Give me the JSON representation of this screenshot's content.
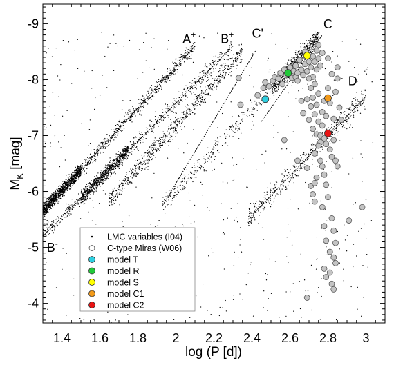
{
  "chart_data": {
    "type": "scatter",
    "xlabel": "log  (P [d])",
    "ylabel_main": "M",
    "ylabel_sub": "K",
    "ylabel_unit": "  [mag]",
    "xlim": [
      1.3,
      3.1
    ],
    "ylim": [
      -3.65,
      -9.35
    ],
    "y_inverted": true,
    "x_ticks": [
      1.4,
      1.6,
      1.8,
      2.0,
      2.2,
      2.4,
      2.6,
      2.8,
      3.0
    ],
    "x_tick_labels": [
      "1.4",
      "1.6",
      "1.8",
      "2",
      "2.2",
      "2.4",
      "2.6",
      "2.8",
      "3"
    ],
    "y_ticks": [
      -4,
      -5,
      -6,
      -7,
      -8,
      -9
    ],
    "y_tick_labels": [
      "-4",
      "-5",
      "-6",
      "-7",
      "-8",
      "-9"
    ],
    "grid": false,
    "legend_position": "bottom-left",
    "sequences": [
      {
        "label": "A",
        "sup": "+",
        "x": [
          1.3,
          2.1
        ],
        "y": [
          -5.65,
          -8.6
        ]
      },
      {
        "label": "B",
        "sup": "+",
        "x": [
          1.3,
          2.3
        ],
        "y": [
          -5.2,
          -8.6
        ]
      },
      {
        "label": "C'",
        "sup": "",
        "x": [
          1.93,
          2.42
        ],
        "y": [
          -5.75,
          -8.52
        ]
      },
      {
        "label": "C",
        "sup": "",
        "x": [
          2.45,
          2.77
        ],
        "y": [
          -7.25,
          -8.8
        ]
      },
      {
        "label": "D",
        "sup": "",
        "x": [
          2.38,
          3.0
        ],
        "y": [
          -5.5,
          -7.7
        ]
      },
      {
        "label": "B",
        "sup": "-",
        "x": [],
        "y": []
      }
    ],
    "sequence_label_positions": [
      {
        "x": 2.07,
        "y": -8.65
      },
      {
        "x": 2.27,
        "y": -8.65
      },
      {
        "x": 2.43,
        "y": -8.75
      },
      {
        "x": 2.8,
        "y": -8.92
      },
      {
        "x": 2.93,
        "y": -7.9
      },
      {
        "x": 1.35,
        "y": -4.92
      }
    ],
    "series": [
      {
        "name": "LMC variables (I04)",
        "kind": "small-dots",
        "color": "#000000",
        "n_points": 5600
      },
      {
        "name": "C-type Miras (W06)",
        "kind": "open-circles",
        "color": "#c4c4c4",
        "points": [
          [
            2.33,
            -8.03
          ],
          [
            2.34,
            -7.55
          ],
          [
            2.43,
            -7.72
          ],
          [
            2.46,
            -7.85
          ],
          [
            2.47,
            -7.95
          ],
          [
            2.49,
            -7.88
          ],
          [
            2.51,
            -7.98
          ],
          [
            2.52,
            -8.05
          ],
          [
            2.54,
            -8.02
          ],
          [
            2.55,
            -8.12
          ],
          [
            2.56,
            -7.92
          ],
          [
            2.57,
            -8.18
          ],
          [
            2.58,
            -8.08
          ],
          [
            2.6,
            -8.22
          ],
          [
            2.61,
            -8.03
          ],
          [
            2.62,
            -8.15
          ],
          [
            2.63,
            -8.25
          ],
          [
            2.63,
            -8.05
          ],
          [
            2.64,
            -8.12
          ],
          [
            2.65,
            -8.35
          ],
          [
            2.66,
            -8.18
          ],
          [
            2.67,
            -8.08
          ],
          [
            2.68,
            -8.28
          ],
          [
            2.69,
            -8.15
          ],
          [
            2.7,
            -8.32
          ],
          [
            2.71,
            -8.22
          ],
          [
            2.72,
            -8.42
          ],
          [
            2.72,
            -8.05
          ],
          [
            2.73,
            -8.32
          ],
          [
            2.74,
            -8.52
          ],
          [
            2.74,
            -8.18
          ],
          [
            2.75,
            -8.62
          ],
          [
            2.75,
            -8.38
          ],
          [
            2.76,
            -8.25
          ],
          [
            2.68,
            -8.5
          ],
          [
            2.7,
            -8.02
          ],
          [
            2.64,
            -7.98
          ],
          [
            2.66,
            -7.62
          ],
          [
            2.67,
            -7.4
          ],
          [
            2.69,
            -7.65
          ],
          [
            2.7,
            -7.28
          ],
          [
            2.71,
            -7.52
          ],
          [
            2.71,
            -7.85
          ],
          [
            2.72,
            -7.12
          ],
          [
            2.72,
            -7.68
          ],
          [
            2.73,
            -7.92
          ],
          [
            2.73,
            -7.38
          ],
          [
            2.74,
            -7.02
          ],
          [
            2.74,
            -7.55
          ],
          [
            2.75,
            -7.25
          ],
          [
            2.75,
            -7.75
          ],
          [
            2.76,
            -7.0
          ],
          [
            2.76,
            -6.88
          ],
          [
            2.77,
            -7.42
          ],
          [
            2.77,
            -7.18
          ],
          [
            2.78,
            -6.95
          ],
          [
            2.78,
            -7.62
          ],
          [
            2.79,
            -7.35
          ],
          [
            2.79,
            -6.85
          ],
          [
            2.8,
            -7.85
          ],
          [
            2.81,
            -6.75
          ],
          [
            2.81,
            -7.58
          ],
          [
            2.82,
            -6.62
          ],
          [
            2.82,
            -8.1
          ],
          [
            2.83,
            -6.92
          ],
          [
            2.83,
            -7.3
          ],
          [
            2.84,
            -6.55
          ],
          [
            2.84,
            -7.78
          ],
          [
            2.85,
            -6.45
          ],
          [
            2.85,
            -8.02
          ],
          [
            2.86,
            -7.5
          ],
          [
            2.75,
            -6.82
          ],
          [
            2.78,
            -6.3
          ],
          [
            2.79,
            -6.12
          ],
          [
            2.74,
            -6.25
          ],
          [
            2.71,
            -6.1
          ],
          [
            2.72,
            -5.95
          ],
          [
            2.73,
            -5.82
          ],
          [
            2.77,
            -5.72
          ],
          [
            2.8,
            -5.9
          ],
          [
            2.82,
            -5.52
          ],
          [
            2.78,
            -5.38
          ],
          [
            2.83,
            -5.3
          ],
          [
            2.79,
            -5.12
          ],
          [
            2.84,
            -5.08
          ],
          [
            2.81,
            -4.92
          ],
          [
            2.83,
            -4.82
          ],
          [
            2.84,
            -4.72
          ],
          [
            2.81,
            -4.55
          ],
          [
            2.79,
            -4.47
          ],
          [
            2.82,
            -4.35
          ],
          [
            2.78,
            -4.62
          ],
          [
            2.83,
            -4.25
          ],
          [
            2.98,
            -5.72
          ],
          [
            2.91,
            -5.48
          ],
          [
            2.69,
            -4.1
          ],
          [
            2.76,
            -6.55
          ],
          [
            2.73,
            -6.68
          ],
          [
            2.8,
            -8.38
          ],
          [
            2.85,
            -8.22
          ],
          [
            2.77,
            -8.48
          ],
          [
            2.69,
            -6.42
          ],
          [
            2.64,
            -6.55
          ],
          [
            2.57,
            -6.92
          ],
          [
            2.87,
            -7.28
          ],
          [
            2.77,
            -6.45
          ],
          [
            2.73,
            -6.15
          ]
        ]
      },
      {
        "name": "model T",
        "kind": "marker",
        "color": "#2ecfe0",
        "points": [
          [
            2.47,
            -7.65
          ]
        ]
      },
      {
        "name": "model R",
        "kind": "marker",
        "color": "#22c93a",
        "points": [
          [
            2.59,
            -8.12
          ]
        ]
      },
      {
        "name": "model S",
        "kind": "marker",
        "color": "#ffff00",
        "points": [
          [
            2.69,
            -8.43
          ]
        ]
      },
      {
        "name": "model C1",
        "kind": "marker",
        "color": "#f29a1a",
        "points": [
          [
            2.8,
            -7.67
          ]
        ]
      },
      {
        "name": "model C2",
        "kind": "marker",
        "color": "#e81414",
        "points": [
          [
            2.8,
            -7.04
          ]
        ]
      }
    ]
  }
}
